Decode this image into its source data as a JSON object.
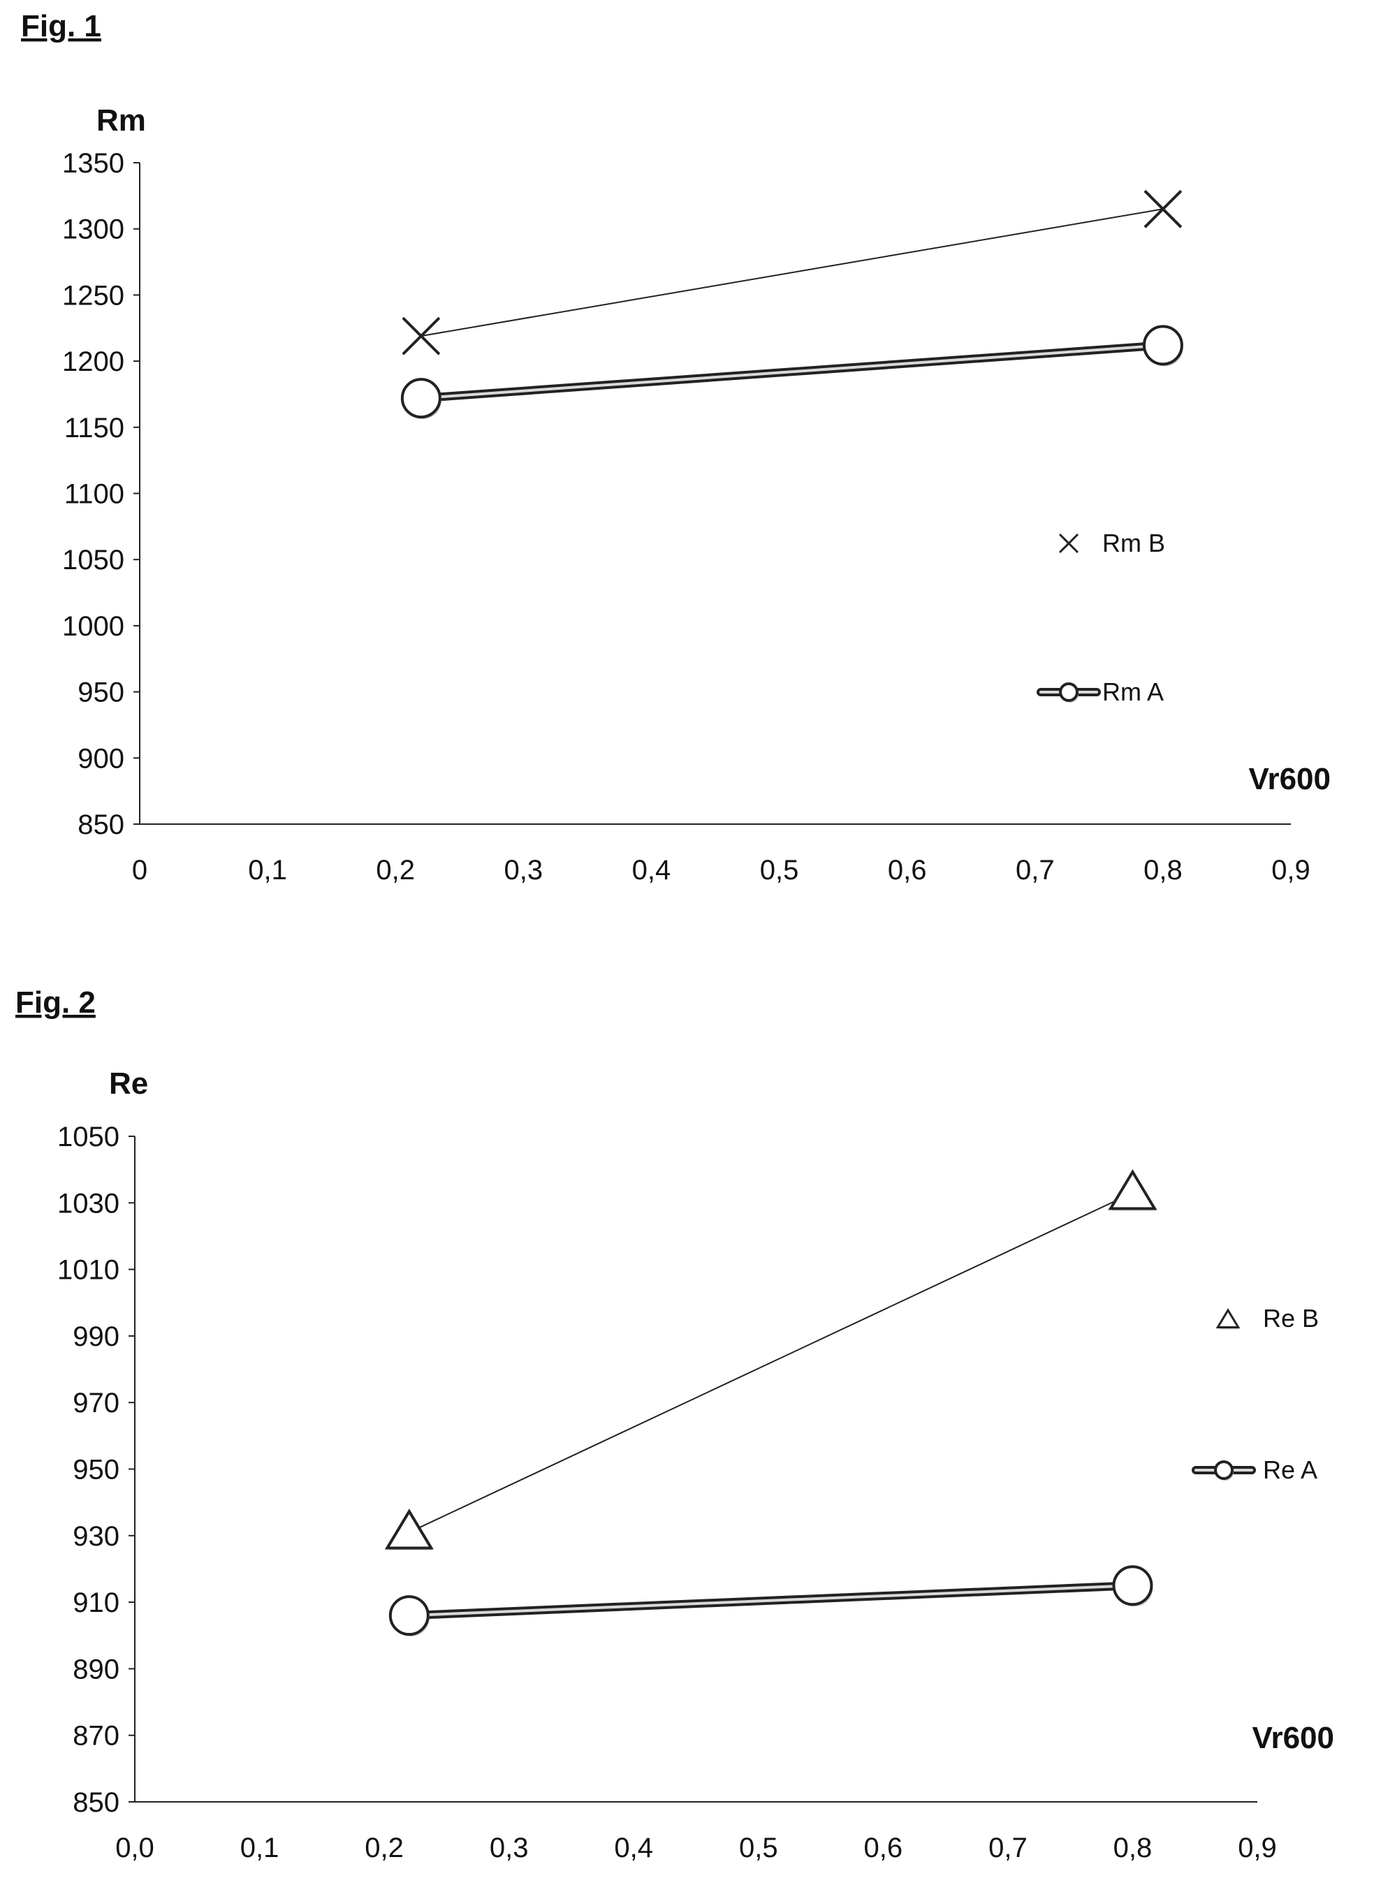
{
  "figures": [
    {
      "fig_label": "Fig. 1",
      "y_title": "Rm",
      "x_title": "Vr600",
      "legend": [
        {
          "marker": "cross",
          "label": "Rm B"
        },
        {
          "marker": "circle-double-line",
          "label": "Rm A"
        }
      ]
    },
    {
      "fig_label": "Fig. 2",
      "y_title": "Re",
      "x_title": "Vr600",
      "legend": [
        {
          "marker": "triangle",
          "label": "Re B"
        },
        {
          "marker": "circle-double-line",
          "label": "Re A"
        }
      ]
    }
  ],
  "chart_data": [
    {
      "type": "line",
      "ylabel": "Rm",
      "xlabel": "Vr600",
      "xlim": [
        0,
        0.9
      ],
      "ylim": [
        850,
        1350
      ],
      "x_ticks": [
        0,
        0.1,
        0.2,
        0.3,
        0.4,
        0.5,
        0.6,
        0.7,
        0.8,
        0.9
      ],
      "x_tick_labels": [
        "0",
        "0,1",
        "0,2",
        "0,3",
        "0,4",
        "0,5",
        "0,6",
        "0,7",
        "0,8",
        "0,9"
      ],
      "y_ticks": [
        850,
        900,
        950,
        1000,
        1050,
        1100,
        1150,
        1200,
        1250,
        1300,
        1350
      ],
      "y_tick_labels": [
        "850",
        "900",
        "950",
        "1000",
        "1050",
        "1100",
        "1150",
        "1200",
        "1250",
        "1300",
        "1350"
      ],
      "grid": false,
      "legend_position": "right",
      "series": [
        {
          "name": "Rm B",
          "marker": "cross",
          "x": [
            0.22,
            0.8
          ],
          "y": [
            1219,
            1315
          ]
        },
        {
          "name": "Rm A",
          "marker": "circle",
          "x": [
            0.22,
            0.8
          ],
          "y": [
            1172,
            1212
          ]
        }
      ]
    },
    {
      "type": "line",
      "ylabel": "Re",
      "xlabel": "Vr600",
      "xlim": [
        0,
        0.9
      ],
      "ylim": [
        850,
        1050
      ],
      "x_ticks": [
        0,
        0.1,
        0.2,
        0.3,
        0.4,
        0.5,
        0.6,
        0.7,
        0.8,
        0.9
      ],
      "x_tick_labels": [
        "0,0",
        "0,1",
        "0,2",
        "0,3",
        "0,4",
        "0,5",
        "0,6",
        "0,7",
        "0,8",
        "0,9"
      ],
      "y_ticks": [
        850,
        870,
        890,
        910,
        930,
        950,
        970,
        990,
        1010,
        1030,
        1050
      ],
      "y_tick_labels": [
        "850",
        "870",
        "890",
        "910",
        "930",
        "950",
        "970",
        "990",
        "1010",
        "1030",
        "1050"
      ],
      "grid": false,
      "legend_position": "right",
      "series": [
        {
          "name": "Re B",
          "marker": "triangle",
          "x": [
            0.22,
            0.8
          ],
          "y": [
            931,
            1033
          ]
        },
        {
          "name": "Re A",
          "marker": "circle",
          "x": [
            0.22,
            0.8
          ],
          "y": [
            906,
            915
          ]
        }
      ]
    }
  ]
}
